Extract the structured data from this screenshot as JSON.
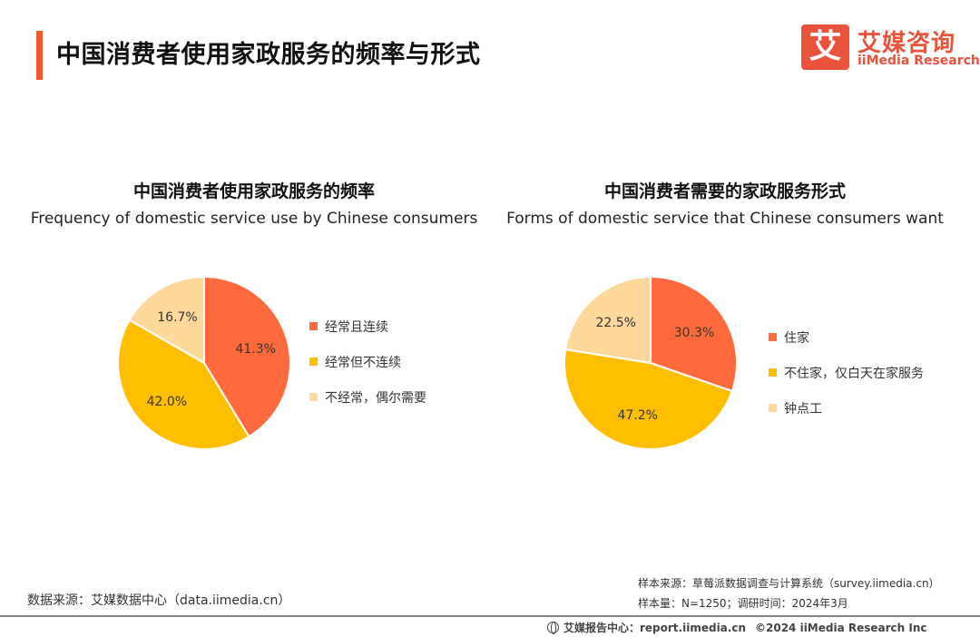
{
  "page": {
    "title": "中国消费者使用家政服务的频率与形式",
    "logo_mark": "艾",
    "logo_cn": "艾媒咨询",
    "logo_en": "iiMedia Research"
  },
  "chart_data": [
    {
      "type": "pie",
      "title": "中国消费者使用家政服务的频率",
      "subtitle": "Frequency of domestic service use by Chinese consumers",
      "categories": [
        "经常且连续",
        "经常但不连续",
        "不经常，偶尔需要"
      ],
      "values": [
        41.3,
        42.0,
        16.7
      ],
      "labels": [
        "41.3%",
        "42.0%",
        "16.7%"
      ],
      "colors": [
        "#ff6a3d",
        "#ffbf00",
        "#ffd89b"
      ],
      "legend": "right"
    },
    {
      "type": "pie",
      "title": "中国消费者需要的家政服务形式",
      "subtitle": "Forms of domestic service that Chinese consumers want",
      "categories": [
        "住家",
        "不住家，仅白天在家服务",
        "钟点工"
      ],
      "values": [
        30.3,
        47.2,
        22.5
      ],
      "labels": [
        "30.3%",
        "47.2%",
        "22.5%"
      ],
      "colors": [
        "#ff6a3d",
        "#ffbf00",
        "#ffd89b"
      ],
      "legend": "right"
    }
  ],
  "footer": {
    "data_source": "数据来源：艾媒数据中心（data.iimedia.cn）",
    "sample_source": "样本来源：草莓派数据调查与计算系统（survey.iimedia.cn）",
    "sample_size": "样本量：N=1250；调研时间：2024年3月",
    "report_center": "艾媒报告中心：report.iimedia.cn",
    "copyright": "©2024 iiMedia Research Inc"
  }
}
